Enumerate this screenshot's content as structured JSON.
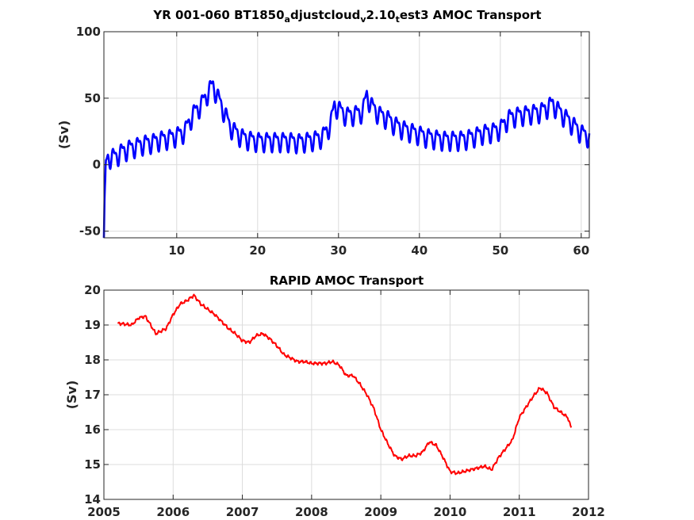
{
  "chart_data": [
    {
      "type": "line",
      "title_parts": [
        {
          "text": "YR 001-060 BT1850",
          "sub": false
        },
        {
          "text": "a",
          "sub": true
        },
        {
          "text": "djustcloud",
          "sub": false
        },
        {
          "text": "v",
          "sub": true
        },
        {
          "text": "2.10",
          "sub": false
        },
        {
          "text": "t",
          "sub": true
        },
        {
          "text": "est3 AMOC Transport",
          "sub": false
        }
      ],
      "xlabel": "",
      "ylabel": "(Sv)",
      "xlim": [
        1,
        61
      ],
      "ylim": [
        -55,
        100
      ],
      "xticks": [
        10,
        20,
        30,
        40,
        50,
        60
      ],
      "yticks": [
        -50,
        0,
        50,
        100
      ],
      "grid": true,
      "color": "#0000ff",
      "seasonal_amplitude": 6,
      "series": [
        {
          "x": [
            1,
            1.1,
            1.25,
            1.5,
            2,
            2.5,
            3,
            4,
            5,
            6,
            7,
            8,
            9,
            10,
            11,
            12,
            13,
            13.5,
            14,
            14.5,
            15,
            15.5,
            16,
            16.5,
            17,
            18,
            19,
            20,
            21,
            22,
            23,
            24,
            25,
            26,
            27,
            28,
            29,
            29.5,
            30,
            31,
            32,
            33,
            33.5,
            34,
            35,
            36,
            37,
            38,
            39,
            40,
            41,
            42,
            43,
            44,
            45,
            46,
            47,
            48,
            49,
            50,
            51,
            52,
            53,
            54,
            55,
            56,
            56.5,
            57,
            58,
            59,
            60,
            61
          ],
          "y": [
            -55,
            -20,
            0,
            5,
            6,
            6,
            9,
            12,
            14,
            16,
            17,
            19,
            20,
            22,
            25,
            38,
            45,
            50,
            56,
            60,
            52,
            45,
            38,
            30,
            26,
            21,
            19,
            18,
            18,
            18,
            18,
            18,
            17,
            18,
            19,
            21,
            30,
            45,
            42,
            37,
            38,
            40,
            53,
            45,
            38,
            35,
            30,
            27,
            25,
            23,
            21,
            20,
            19,
            19,
            19,
            20,
            22,
            24,
            25,
            27,
            35,
            37,
            38,
            39,
            40,
            44,
            46,
            42,
            36,
            30,
            24,
            21
          ]
        }
      ]
    },
    {
      "type": "line",
      "title": "RAPID AMOC Transport",
      "xlabel": "",
      "ylabel": "(Sv)",
      "xlim": [
        2005,
        2012
      ],
      "ylim": [
        14,
        20
      ],
      "xticks": [
        2005,
        2006,
        2007,
        2008,
        2009,
        2010,
        2011,
        2012
      ],
      "yticks": [
        14,
        15,
        16,
        17,
        18,
        19,
        20
      ],
      "grid": true,
      "color": "#ff0000",
      "series": [
        {
          "x": [
            2005.2,
            2005.4,
            2005.5,
            2005.6,
            2005.75,
            2005.9,
            2006.0,
            2006.1,
            2006.2,
            2006.3,
            2006.4,
            2006.5,
            2006.6,
            2006.7,
            2006.8,
            2006.9,
            2007.0,
            2007.1,
            2007.2,
            2007.3,
            2007.4,
            2007.5,
            2007.6,
            2007.7,
            2007.8,
            2007.9,
            2008.0,
            2008.1,
            2008.2,
            2008.3,
            2008.4,
            2008.5,
            2008.6,
            2008.7,
            2008.8,
            2008.9,
            2009.0,
            2009.1,
            2009.2,
            2009.3,
            2009.4,
            2009.5,
            2009.6,
            2009.7,
            2009.8,
            2009.9,
            2010.0,
            2010.1,
            2010.2,
            2010.3,
            2010.4,
            2010.5,
            2010.6,
            2010.7,
            2010.8,
            2010.9,
            2011.0,
            2011.1,
            2011.2,
            2011.3,
            2011.4,
            2011.5,
            2011.6,
            2011.7,
            2011.75
          ],
          "y": [
            19.05,
            19.0,
            19.2,
            19.25,
            18.75,
            18.9,
            19.3,
            19.6,
            19.7,
            19.85,
            19.6,
            19.45,
            19.3,
            19.1,
            18.9,
            18.75,
            18.55,
            18.5,
            18.7,
            18.75,
            18.6,
            18.4,
            18.15,
            18.05,
            17.95,
            17.95,
            17.9,
            17.9,
            17.9,
            17.95,
            17.85,
            17.55,
            17.55,
            17.3,
            17.0,
            16.6,
            16.0,
            15.6,
            15.25,
            15.15,
            15.25,
            15.25,
            15.35,
            15.65,
            15.55,
            15.2,
            14.8,
            14.75,
            14.8,
            14.85,
            14.9,
            14.95,
            14.85,
            15.2,
            15.45,
            15.7,
            16.35,
            16.65,
            16.95,
            17.2,
            17.05,
            16.65,
            16.5,
            16.35,
            16.05
          ]
        }
      ]
    }
  ]
}
